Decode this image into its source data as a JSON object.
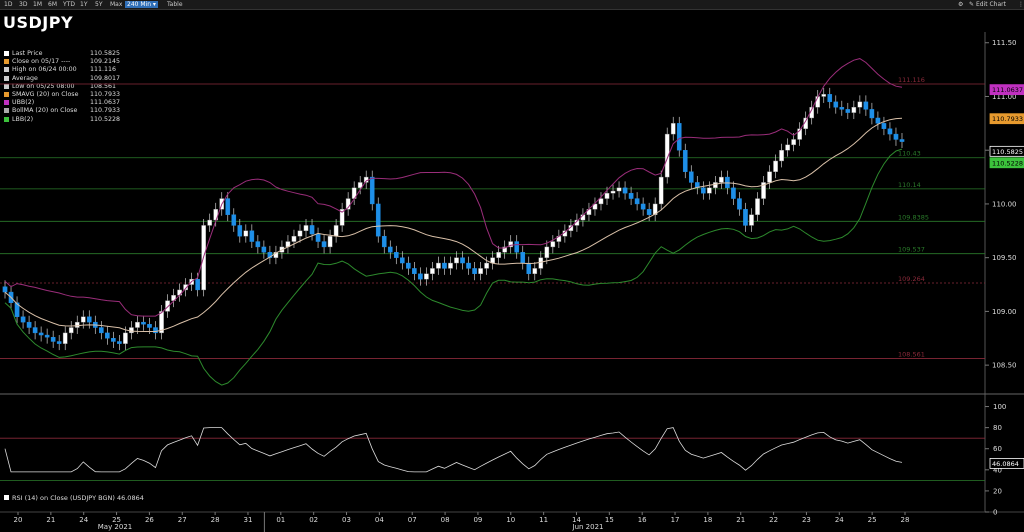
{
  "toolbar": {
    "ranges": [
      "1D",
      "3D",
      "1M",
      "6M",
      "YTD",
      "1Y",
      "5Y",
      "Max"
    ],
    "interval": "240 Min",
    "table": "Table",
    "edit_chart": "Edit Chart"
  },
  "title": "USDJPY",
  "legend": [
    {
      "name": "Last Price",
      "value": "110.5825",
      "color": "#ffffff"
    },
    {
      "name": "Close on 05/17 ----",
      "value": "109.2145",
      "color": "#e79a2e"
    },
    {
      "name": "High on 06/24 00:00",
      "value": "111.116",
      "color": "#cccccc"
    },
    {
      "name": "Average",
      "value": "109.8017",
      "color": "#cccccc"
    },
    {
      "name": "Low on 05/25 08:00",
      "value": "108.561",
      "color": "#cccccc"
    },
    {
      "name": "SMAVG (20)  on Close",
      "value": "110.7933",
      "color": "#e79a2e"
    },
    {
      "name": "UBB(2)",
      "value": "111.0637",
      "color": "#c030c0"
    },
    {
      "name": "BollMA (20)  on Close",
      "value": "110.7933",
      "color": "#aaaaaa"
    },
    {
      "name": "LBB(2)",
      "value": "110.5228",
      "color": "#3cc23c"
    }
  ],
  "rsi_legend": "RSI (14)  on Close (USDJPY BGN) 46.0864",
  "colors": {
    "up_candle": "#ffffff",
    "down_candle": "#1e8fe8",
    "sma": "#d9c0a8",
    "upper_band": "#9a2d7a",
    "lower_band": "#2d8a2d",
    "grid_green": "#1f6b1f",
    "grid_red": "#7a1e2a",
    "rsi": "#dddddd"
  },
  "chart_data": [
    {
      "type": "candlestick",
      "title": "USDJPY",
      "ylim": [
        108.25,
        111.6
      ],
      "y_ticks": [
        "111.50",
        "111.00",
        "110.50",
        "110.00",
        "109.50",
        "109.00",
        "108.50"
      ],
      "x_ticks": [
        "20",
        "21",
        "24",
        "25",
        "26",
        "27",
        "28",
        "31",
        "01",
        "02",
        "03",
        "04",
        "07",
        "08",
        "09",
        "10",
        "11",
        "14",
        "15",
        "16",
        "17",
        "18",
        "21",
        "22",
        "23",
        "24",
        "25",
        "28"
      ],
      "x_month_labels": [
        "May 2021",
        "Jun 2021"
      ],
      "reference_lines": [
        {
          "label": "111.116",
          "y": 111.116,
          "color": "#8a2a3a"
        },
        {
          "label": "110.43",
          "y": 110.43,
          "color": "#2a7a2a"
        },
        {
          "label": "110.14",
          "y": 110.14,
          "color": "#2a7a2a"
        },
        {
          "label": "109.8385",
          "y": 109.8385,
          "color": "#2a7a2a"
        },
        {
          "label": "109.537",
          "y": 109.537,
          "color": "#2a7a2a"
        },
        {
          "label": "109.264",
          "y": 109.264,
          "color": "#8a2a3a"
        },
        {
          "label": "108.561",
          "y": 108.561,
          "color": "#8a2a3a"
        }
      ],
      "price_tags": [
        {
          "label": "111.0637",
          "y": 111.0637,
          "color": "#c030c0"
        },
        {
          "label": "110.7933",
          "y": 110.7933,
          "color": "#e79a2e"
        },
        {
          "label": "110.5825",
          "y": 110.5825,
          "color": "#ffffff"
        },
        {
          "label": "110.5228",
          "y": 110.5228,
          "color": "#3cc23c"
        }
      ],
      "close": [
        109.18,
        109.08,
        108.95,
        108.9,
        108.85,
        108.8,
        108.78,
        108.76,
        108.72,
        108.7,
        108.8,
        108.85,
        108.9,
        108.95,
        108.9,
        108.85,
        108.8,
        108.75,
        108.72,
        108.7,
        108.8,
        108.85,
        108.9,
        108.88,
        108.85,
        108.8,
        109.0,
        109.1,
        109.15,
        109.2,
        109.25,
        109.3,
        109.2,
        109.8,
        109.85,
        109.95,
        110.05,
        109.9,
        109.8,
        109.7,
        109.75,
        109.65,
        109.6,
        109.55,
        109.5,
        109.55,
        109.6,
        109.65,
        109.7,
        109.75,
        109.8,
        109.72,
        109.65,
        109.6,
        109.7,
        109.8,
        109.95,
        110.05,
        110.15,
        110.2,
        110.25,
        110.0,
        109.7,
        109.6,
        109.55,
        109.5,
        109.45,
        109.4,
        109.35,
        109.3,
        109.35,
        109.4,
        109.45,
        109.4,
        109.45,
        109.5,
        109.45,
        109.4,
        109.35,
        109.4,
        109.45,
        109.5,
        109.55,
        109.6,
        109.65,
        109.55,
        109.45,
        109.35,
        109.4,
        109.5,
        109.6,
        109.65,
        109.7,
        109.75,
        109.8,
        109.85,
        109.9,
        109.95,
        110.0,
        110.05,
        110.1,
        110.12,
        110.15,
        110.1,
        110.05,
        110.0,
        109.95,
        109.9,
        110.0,
        110.25,
        110.65,
        110.75,
        110.5,
        110.3,
        110.2,
        110.15,
        110.1,
        110.15,
        110.2,
        110.25,
        110.15,
        110.05,
        109.95,
        109.8,
        109.9,
        110.05,
        110.2,
        110.3,
        110.4,
        110.5,
        110.55,
        110.6,
        110.7,
        110.8,
        110.9,
        111.0,
        111.02,
        110.95,
        110.9,
        110.88,
        110.85,
        110.9,
        110.95,
        110.88,
        110.8,
        110.75,
        110.7,
        110.65,
        110.6,
        110.58
      ],
      "rsi": {
        "ylim": [
          0,
          110
        ],
        "y_ticks": [
          "100",
          "80",
          "60",
          "40",
          "20",
          "0"
        ],
        "levels": [
          {
            "y": 70,
            "color": "#8a2a3a"
          },
          {
            "y": 30,
            "color": "#2a7a2a"
          }
        ],
        "last": "46.0864"
      }
    }
  ]
}
